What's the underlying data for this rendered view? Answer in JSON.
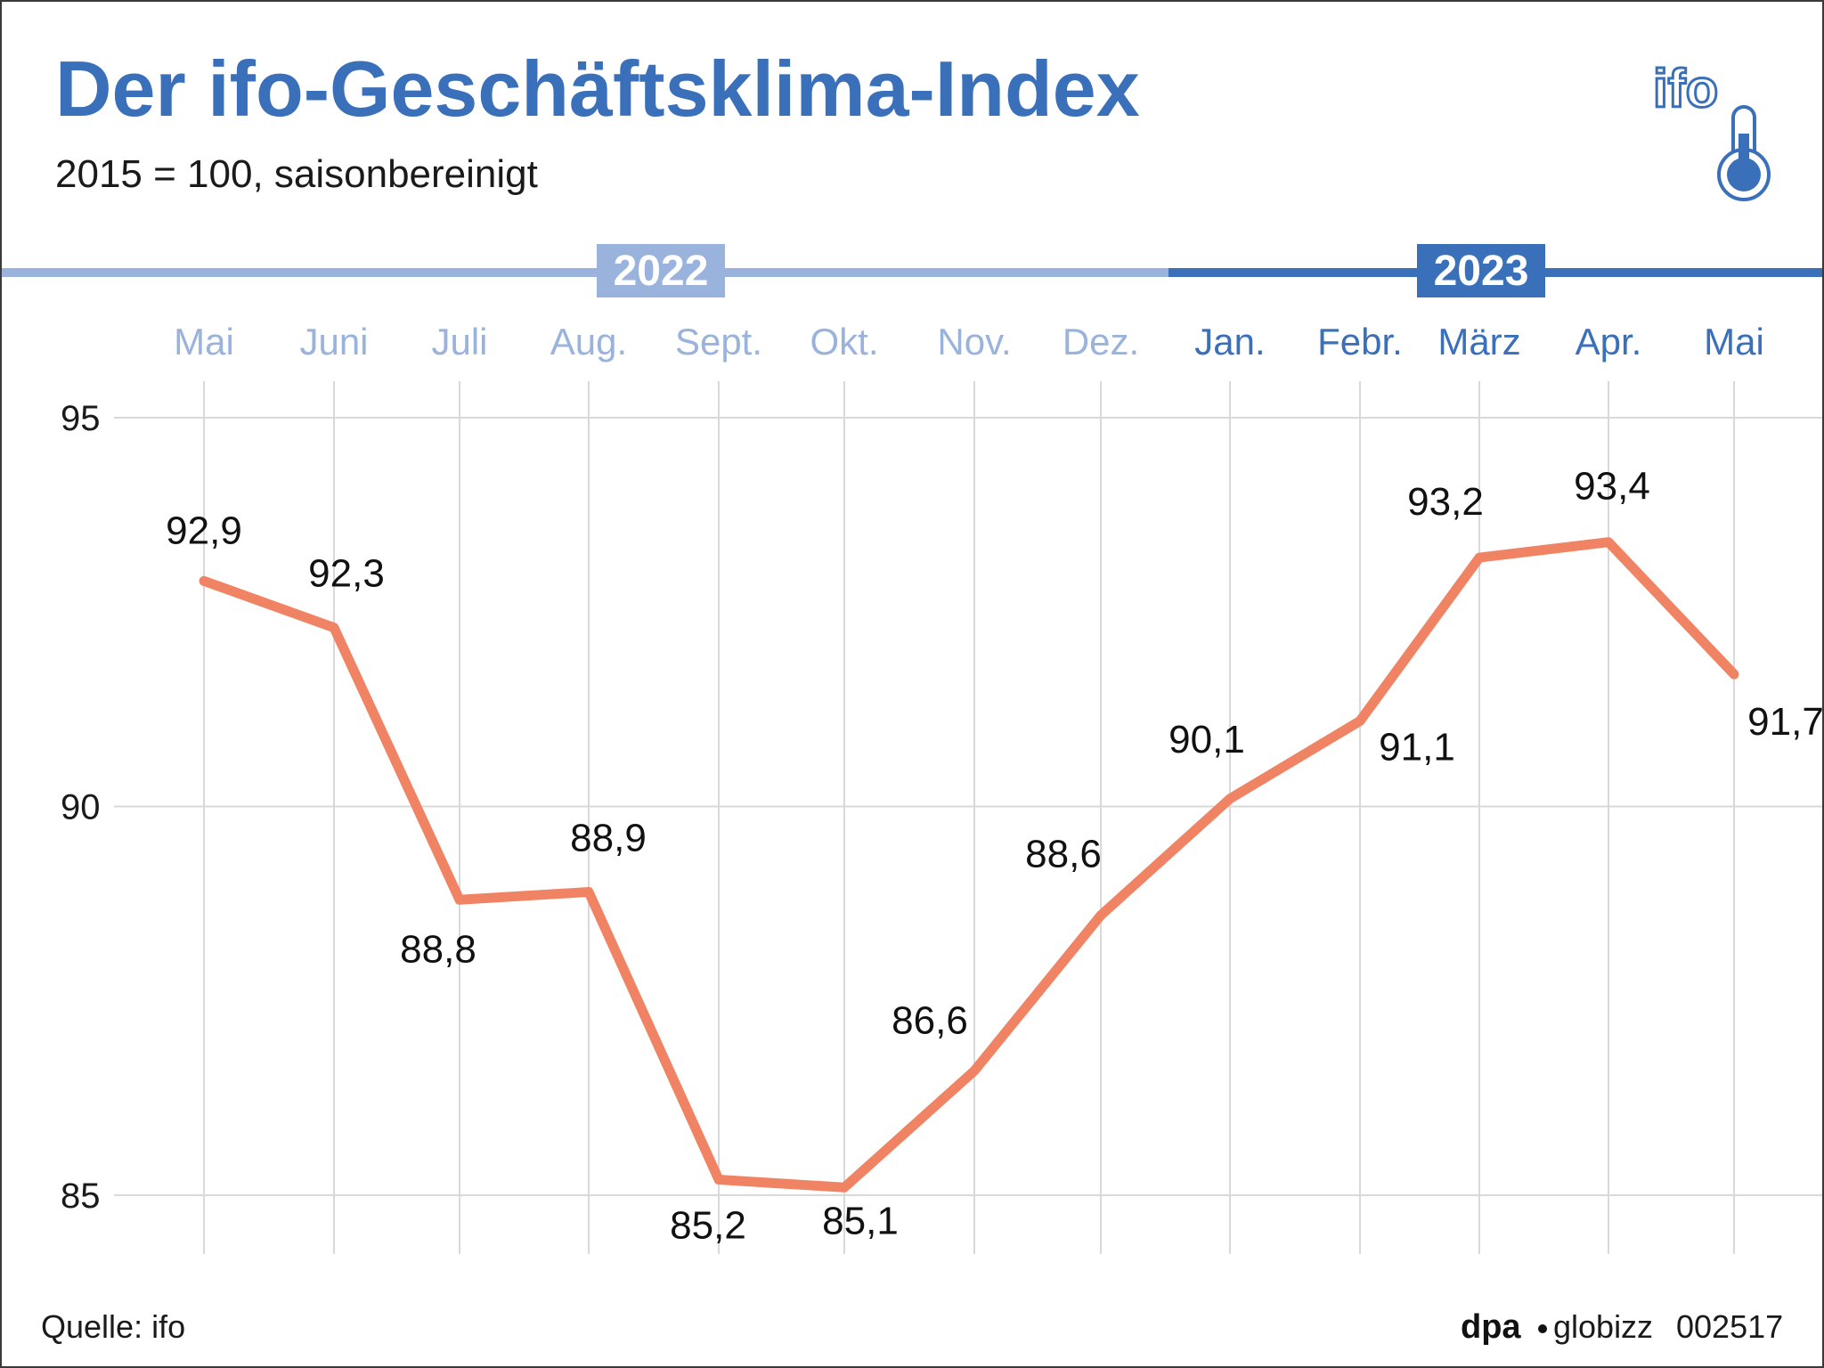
{
  "header": {
    "title": "Der ifo-Geschäftsklima-Index",
    "subtitle": "2015 = 100, saisonbereinigt"
  },
  "logo": {
    "text": "ifo",
    "icon": "thermometer-icon"
  },
  "colors": {
    "line": "#ef8363",
    "year_2022": "#9ab3dd",
    "year_2023": "#3a6fba",
    "grid": "#d9d9d9"
  },
  "timeline": {
    "years": [
      {
        "label": "2022",
        "months": 8
      },
      {
        "label": "2023",
        "months": 5
      }
    ]
  },
  "footer": {
    "source": "Quelle: ifo",
    "credit_brand": "dpa",
    "credit_product": "globizz",
    "graphic_id": "002517"
  },
  "chart_data": {
    "type": "line",
    "title": "Der ifo-Geschäftsklima-Index",
    "subtitle": "2015 = 100, saisonbereinigt",
    "categories": [
      "Mai",
      "Juni",
      "Juli",
      "Aug.",
      "Sept.",
      "Okt.",
      "Nov.",
      "Dez.",
      "Jan.",
      "Febr.",
      "März",
      "Apr.",
      "Mai"
    ],
    "series": [
      {
        "values": [
          92.9,
          92.3,
          88.8,
          88.9,
          85.2,
          85.1,
          86.6,
          88.6,
          90.1,
          91.1,
          93.2,
          93.4,
          91.7
        ],
        "labels": [
          "92,9",
          "92,3",
          "88,8",
          "88,9",
          "85,2",
          "85,1",
          "86,6",
          "88,6",
          "90,1",
          "91,1",
          "93,2",
          "93,4",
          "91,7"
        ],
        "color": "#ef8363"
      }
    ],
    "yticks": [
      85,
      90,
      95
    ],
    "ylim": [
      85,
      95
    ],
    "grid": true
  }
}
